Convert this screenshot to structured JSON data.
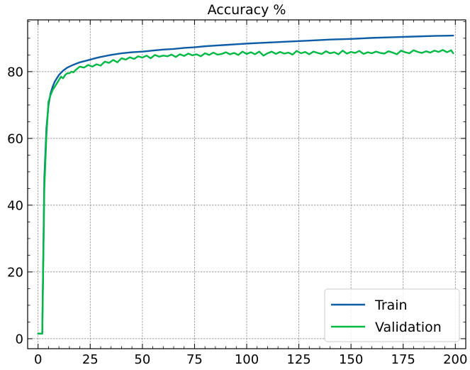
{
  "chart_data": {
    "type": "line",
    "title": "Accuracy %",
    "xlabel": "",
    "ylabel": "",
    "xlim": [
      -5,
      205
    ],
    "ylim": [
      -3,
      95.5
    ],
    "xticks": [
      0,
      25,
      50,
      75,
      100,
      125,
      150,
      175,
      200
    ],
    "yticks": [
      0,
      20,
      40,
      60,
      80
    ],
    "grid": true,
    "legend_position": "bottom-right",
    "colors": {
      "Train": "#0c5da5",
      "Validation": "#00b945"
    },
    "series": [
      {
        "name": "Train",
        "x": [
          0,
          1,
          2,
          3,
          4,
          5,
          6,
          7,
          8,
          9,
          10,
          12,
          14,
          16,
          18,
          20,
          22,
          25,
          28,
          30,
          35,
          40,
          45,
          50,
          55,
          60,
          65,
          70,
          75,
          80,
          85,
          90,
          95,
          100,
          110,
          120,
          130,
          140,
          150,
          160,
          170,
          180,
          190,
          199
        ],
        "y": [
          1.5,
          1.5,
          1.5,
          48,
          63,
          70,
          73.5,
          75.5,
          77,
          78,
          79,
          80.3,
          81.2,
          81.8,
          82.3,
          82.8,
          83.1,
          83.6,
          84.1,
          84.4,
          85,
          85.5,
          85.8,
          86,
          86.3,
          86.6,
          86.8,
          87.1,
          87.3,
          87.6,
          87.8,
          88,
          88.2,
          88.4,
          88.7,
          89,
          89.3,
          89.6,
          89.8,
          90.1,
          90.3,
          90.5,
          90.7,
          90.8
        ]
      },
      {
        "name": "Validation",
        "x": [
          0,
          1,
          2,
          3,
          4,
          5,
          6,
          7,
          8,
          9,
          10,
          11,
          12,
          13,
          14,
          15,
          16,
          17,
          18,
          19,
          20,
          22,
          24,
          26,
          28,
          30,
          32,
          34,
          36,
          38,
          40,
          42,
          44,
          46,
          48,
          50,
          52,
          54,
          56,
          58,
          60,
          62,
          64,
          66,
          68,
          70,
          72,
          74,
          76,
          78,
          80,
          82,
          84,
          86,
          88,
          90,
          92,
          94,
          96,
          98,
          100,
          102,
          104,
          106,
          108,
          110,
          112,
          114,
          116,
          118,
          120,
          122,
          124,
          126,
          128,
          130,
          132,
          134,
          136,
          138,
          140,
          142,
          144,
          146,
          148,
          150,
          152,
          154,
          156,
          158,
          160,
          162,
          164,
          166,
          168,
          170,
          172,
          174,
          176,
          178,
          180,
          182,
          184,
          186,
          188,
          190,
          192,
          194,
          196,
          198,
          199
        ],
        "y": [
          1.5,
          1.5,
          1.5,
          45,
          61,
          71,
          73,
          74.5,
          75.5,
          76.5,
          77.5,
          78.5,
          78,
          79,
          79.5,
          79.5,
          80,
          79.8,
          80.5,
          81,
          81.5,
          81.2,
          82,
          81.5,
          82.2,
          81.8,
          83,
          82.6,
          83.5,
          82.8,
          84,
          83.6,
          84.3,
          83.8,
          84.6,
          84.2,
          84.8,
          84,
          85,
          84.5,
          84.8,
          84.6,
          85.1,
          84.4,
          85.2,
          84.7,
          85.4,
          84.9,
          85.2,
          84.6,
          85.5,
          85,
          85.7,
          85.1,
          85.3,
          85.8,
          85.2,
          85.6,
          85,
          86,
          85.3,
          85.8,
          85.2,
          86,
          84.8,
          85.5,
          86,
          85.3,
          85.9,
          85.4,
          85.7,
          85.1,
          86.2,
          85.5,
          85.9,
          85.2,
          86,
          85.6,
          85.3,
          86.1,
          85.5,
          85.8,
          85.2,
          86.3,
          85.4,
          85.9,
          85.6,
          86.2,
          85.3,
          85.8,
          85.5,
          86,
          85.6,
          85.4,
          86.1,
          85.7,
          85.2,
          86.3,
          85.8,
          85.5,
          86.4,
          85.9,
          85.6,
          86.1,
          85.7,
          86.3,
          85.9,
          86.5,
          85.8,
          86.4,
          85.5
        ]
      }
    ]
  }
}
